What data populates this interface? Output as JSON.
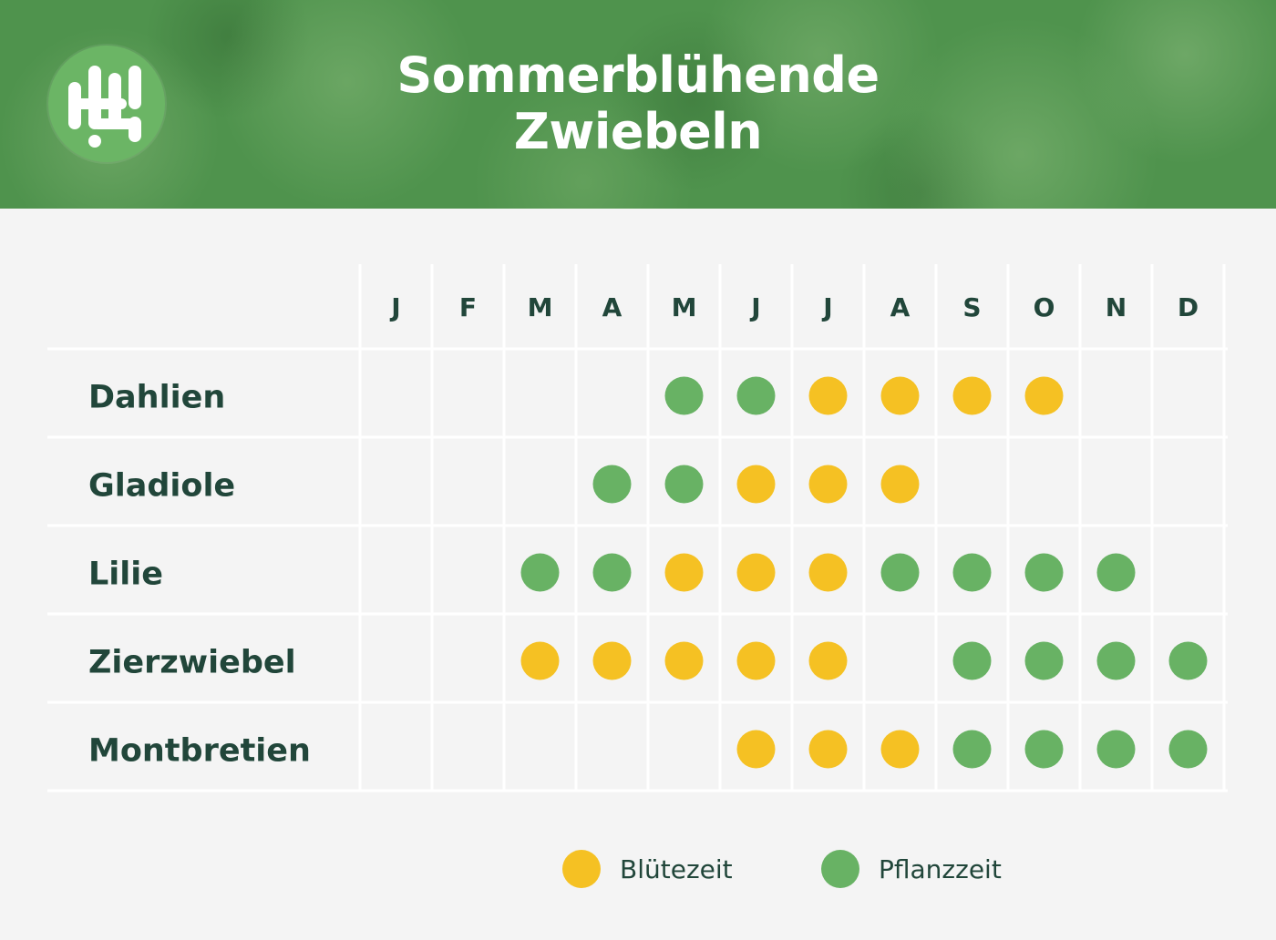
{
  "header": {
    "title_line1": "Sommerblühende",
    "title_line2": "Zwiebeln",
    "logo_icon": "garden-logo-icon"
  },
  "colors": {
    "bloom": "#f5c123",
    "plant": "#68b264",
    "text": "#21463a",
    "background": "#f4f4f4",
    "header": "#4f934d"
  },
  "chart_data": {
    "type": "table",
    "columns": [
      "J",
      "F",
      "M",
      "A",
      "M",
      "J",
      "J",
      "A",
      "S",
      "O",
      "N",
      "D"
    ],
    "legend": [
      {
        "key": "bloom",
        "label": "Blütezeit"
      },
      {
        "key": "plant",
        "label": "Pflanzzeit"
      }
    ],
    "legend_position": "bottom",
    "rows": [
      {
        "name": "Dahlien",
        "cells": [
          null,
          null,
          null,
          null,
          "plant",
          "plant",
          "bloom",
          "bloom",
          "bloom",
          "bloom",
          null,
          null
        ]
      },
      {
        "name": "Gladiole",
        "cells": [
          null,
          null,
          null,
          "plant",
          "plant",
          "bloom",
          "bloom",
          "bloom",
          null,
          null,
          null,
          null
        ]
      },
      {
        "name": "Lilie",
        "cells": [
          null,
          null,
          "plant",
          "plant",
          "bloom",
          "bloom",
          "bloom",
          "plant",
          "plant",
          "plant",
          "plant",
          null
        ]
      },
      {
        "name": "Zierzwiebel",
        "cells": [
          null,
          null,
          "bloom",
          "bloom",
          "bloom",
          "bloom",
          "bloom",
          null,
          "plant",
          "plant",
          "plant",
          "plant"
        ]
      },
      {
        "name": "Montbretien",
        "cells": [
          null,
          null,
          null,
          null,
          null,
          "bloom",
          "bloom",
          "bloom",
          "plant",
          "plant",
          "plant",
          "plant"
        ]
      }
    ]
  }
}
